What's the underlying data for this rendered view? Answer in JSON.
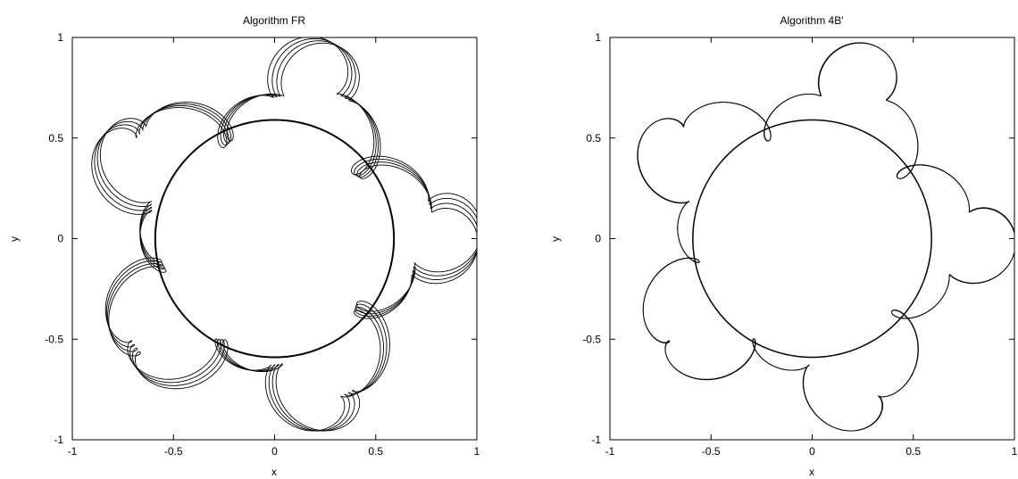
{
  "chart_data": [
    {
      "type": "line",
      "title": "Algorithm FR",
      "xlabel": "x",
      "ylabel": "y",
      "xlim": [
        -1,
        1
      ],
      "ylim": [
        -1,
        1
      ],
      "xticks": [
        -1,
        -0.5,
        0,
        0.5,
        1
      ],
      "yticks": [
        -1,
        -0.5,
        0,
        0.5,
        1
      ],
      "xtick_labels": [
        "-1",
        "-0.5",
        "0",
        "0.5",
        "1"
      ],
      "ytick_labels": [
        "-1",
        "-0.5",
        "0",
        "0.5",
        "1"
      ],
      "grid": false,
      "color": "#000000",
      "curve": {
        "kind": "epicyclic-orbit",
        "r_inner": 0.59,
        "r_outer": 0.94,
        "lobes": 5,
        "small_loops_near_radius": 0.5,
        "traced_revolutions": 4,
        "drifts_between_revolutions": true
      }
    },
    {
      "type": "line",
      "title": "Algorithm 4B'",
      "xlabel": "x",
      "ylabel": "y",
      "xlim": [
        -1,
        1
      ],
      "ylim": [
        -1,
        1
      ],
      "xticks": [
        -1,
        -0.5,
        0,
        0.5,
        1
      ],
      "yticks": [
        -1,
        -0.5,
        0,
        0.5,
        1
      ],
      "xtick_labels": [
        "-1",
        "-0.5",
        "0",
        "0.5",
        "1"
      ],
      "ytick_labels": [
        "-1",
        "-0.5",
        "0",
        "0.5",
        "1"
      ],
      "grid": false,
      "color": "#000000",
      "curve": {
        "kind": "epicyclic-orbit",
        "r_inner": 0.59,
        "r_outer": 0.94,
        "lobes": 5,
        "small_loops_near_radius": 0.5,
        "traced_revolutions": 2,
        "drifts_between_revolutions": false
      }
    }
  ]
}
